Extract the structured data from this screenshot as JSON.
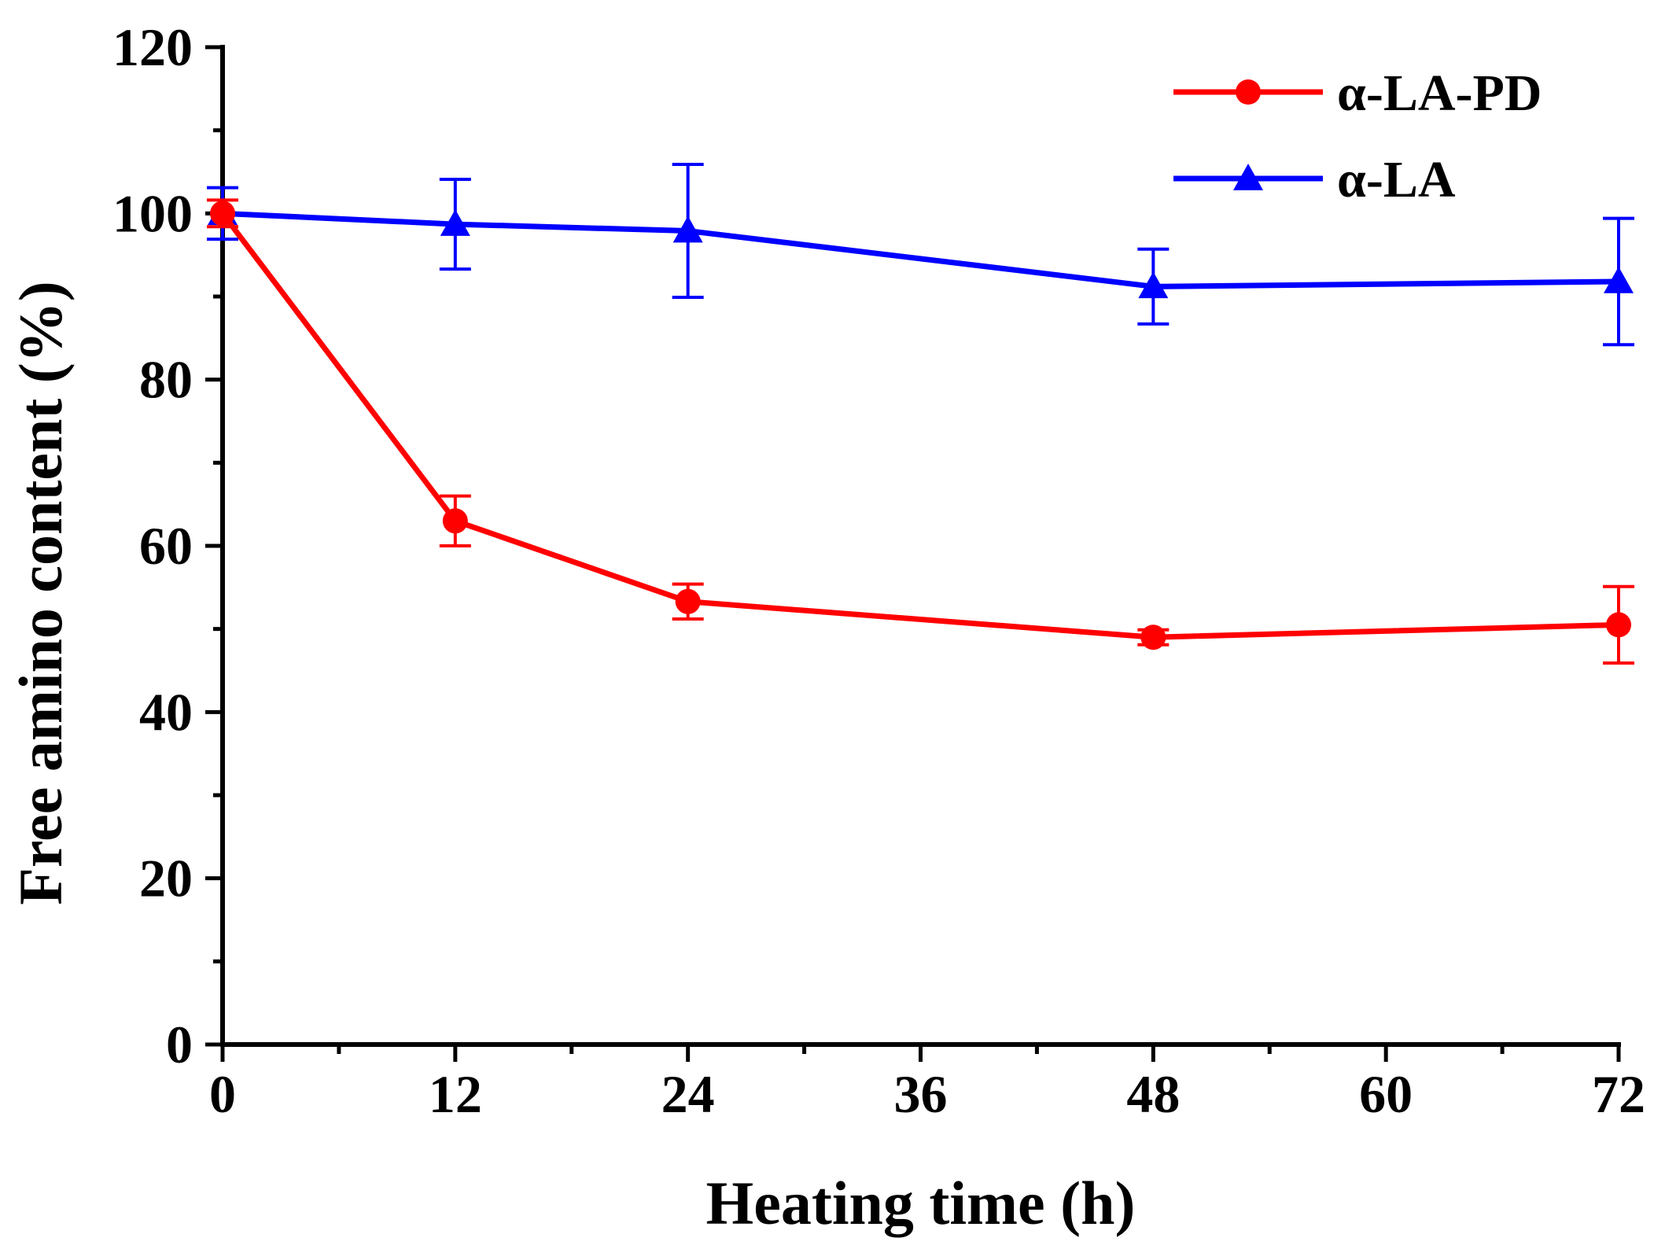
{
  "chart_data": {
    "type": "line",
    "title": "",
    "xlabel": "Heating time (h)",
    "ylabel": "Free amino content (%)",
    "xlim": [
      0,
      72
    ],
    "ylim": [
      0,
      120
    ],
    "xticks": [
      0,
      12,
      24,
      36,
      48,
      60,
      72
    ],
    "yticks": [
      0,
      20,
      40,
      60,
      80,
      100,
      120
    ],
    "xtick_labels": [
      "0",
      "12",
      "24",
      "36",
      "48",
      "60",
      "72"
    ],
    "ytick_labels": [
      "0",
      "20",
      "40",
      "60",
      "80",
      "100",
      "120"
    ],
    "grid": false,
    "legend_position": "top-right",
    "series": [
      {
        "name": "α-LA-PD",
        "color": "#ff0000",
        "marker": "circle",
        "x": [
          0,
          12,
          24,
          48,
          72
        ],
        "y": [
          100,
          63,
          53.3,
          49,
          50.5
        ],
        "err": [
          1.6,
          3,
          2.1,
          0.9,
          4.6
        ]
      },
      {
        "name": "α-LA",
        "color": "#0000ff",
        "marker": "triangle",
        "x": [
          0,
          12,
          24,
          48,
          72
        ],
        "y": [
          100,
          98.7,
          97.9,
          91.2,
          91.8
        ],
        "err": [
          3.1,
          5.4,
          8,
          4.5,
          7.6
        ]
      }
    ]
  }
}
